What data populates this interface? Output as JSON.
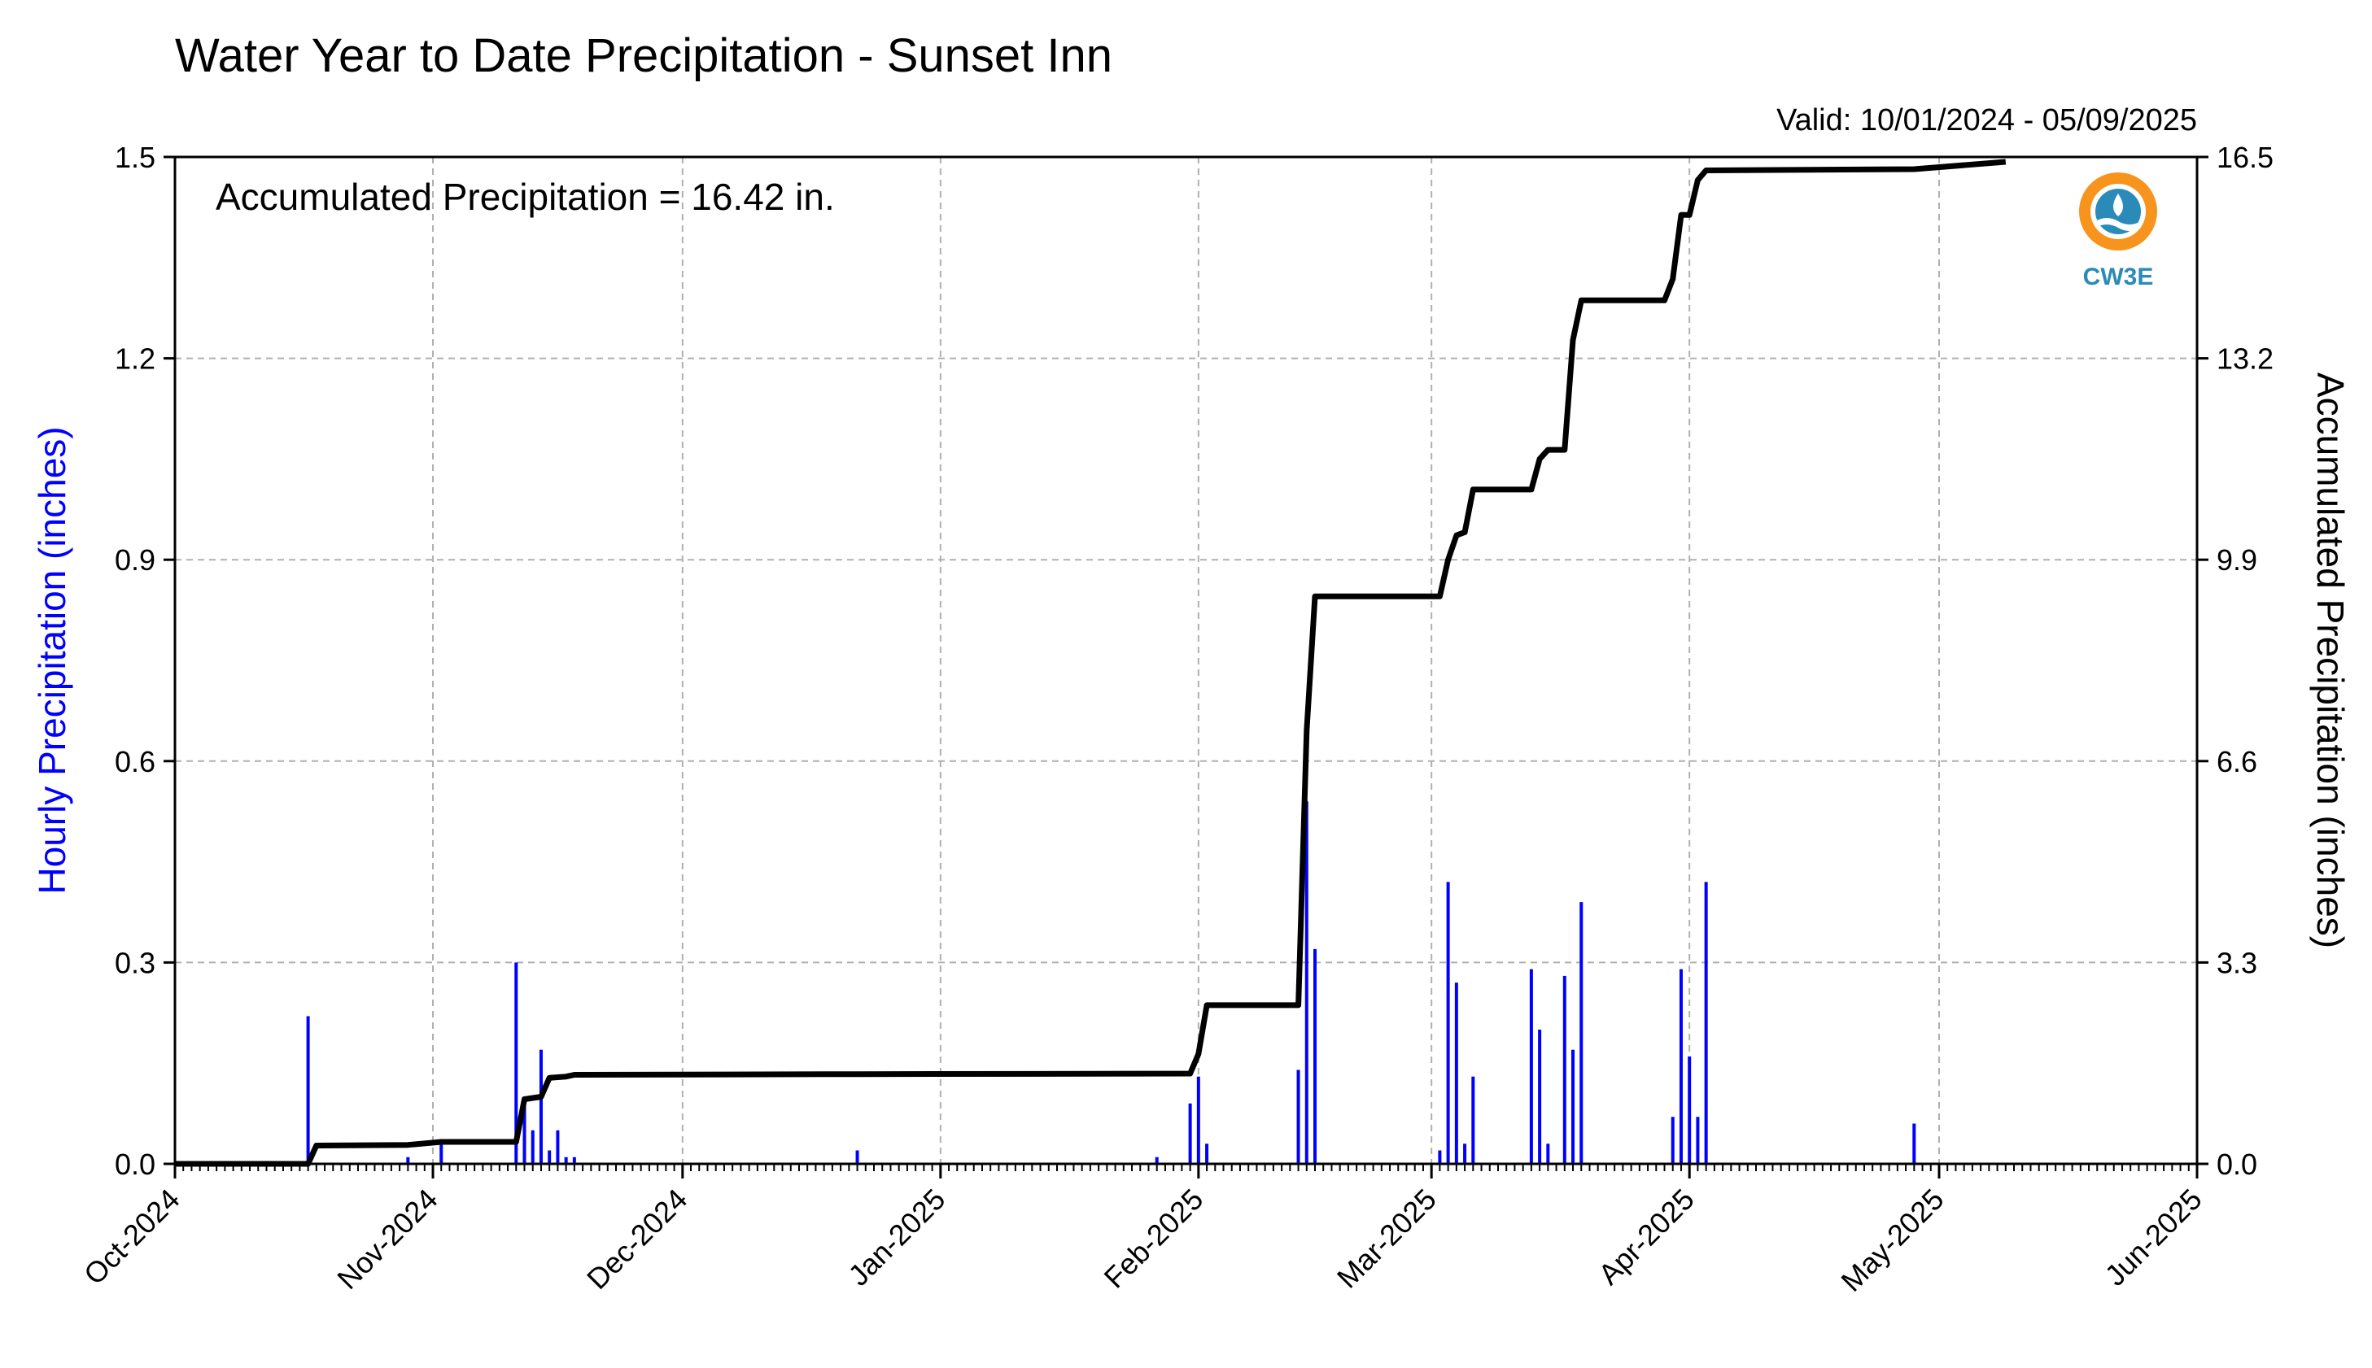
{
  "chart_data": {
    "type": "bar+line",
    "title": "Water Year to Date Precipitation - Sunset Inn",
    "subtitle": "Valid: 10/01/2024 - 05/09/2025",
    "annotation": "Accumulated Precipitation = 16.42 in.",
    "ylabel_left": "Hourly Precipitation (inches)",
    "ylabel_right": "Accumulated Precipitation (inches)",
    "ylim_left": [
      0,
      1.5
    ],
    "ylim_right": [
      0,
      16.5
    ],
    "yticks_left": [
      "0.0",
      "0.3",
      "0.6",
      "0.9",
      "1.2",
      "1.5"
    ],
    "yticks_right": [
      "0.0",
      "3.3",
      "6.6",
      "9.9",
      "13.2",
      "16.5"
    ],
    "x_start": "2024-10-01",
    "x_end": "2025-06-01",
    "xtick_labels": [
      "Oct-2024",
      "Nov-2024",
      "Dec-2024",
      "Jan-2025",
      "Feb-2025",
      "Mar-2025",
      "Apr-2025",
      "May-2025",
      "Jun-2025"
    ],
    "xtick_dates": [
      "2024-10-01",
      "2024-11-01",
      "2024-12-01",
      "2025-01-01",
      "2025-02-01",
      "2025-03-01",
      "2025-04-01",
      "2025-05-01",
      "2025-06-01"
    ],
    "grid": true,
    "colors": {
      "hourly": "#0000ff",
      "accumulated": "#000000",
      "grid": "#b0b0b0"
    },
    "series": [
      {
        "name": "Hourly Precipitation",
        "type": "bar",
        "x": [
          "2024-10-17",
          "2024-10-29",
          "2024-11-02",
          "2024-11-11",
          "2024-11-12",
          "2024-11-13",
          "2024-11-14",
          "2024-11-15",
          "2024-11-16",
          "2024-11-17",
          "2024-11-18",
          "2024-12-22",
          "2025-01-27",
          "2025-01-31",
          "2025-02-01",
          "2025-02-02",
          "2025-02-13",
          "2025-02-14",
          "2025-02-15",
          "2025-03-02",
          "2025-03-03",
          "2025-03-04",
          "2025-03-05",
          "2025-03-06",
          "2025-03-13",
          "2025-03-14",
          "2025-03-15",
          "2025-03-17",
          "2025-03-18",
          "2025-03-19",
          "2025-03-30",
          "2025-03-31",
          "2025-04-01",
          "2025-04-02",
          "2025-04-03",
          "2025-04-28"
        ],
        "values": [
          0.22,
          0.01,
          0.03,
          0.3,
          0.1,
          0.05,
          0.17,
          0.02,
          0.05,
          0.01,
          0.01,
          0.02,
          0.01,
          0.09,
          0.13,
          0.03,
          0.14,
          0.54,
          0.32,
          0.02,
          0.42,
          0.27,
          0.03,
          0.13,
          0.29,
          0.2,
          0.03,
          0.28,
          0.17,
          0.39,
          0.07,
          0.29,
          0.16,
          0.07,
          0.42,
          0.06
        ]
      },
      {
        "name": "Accumulated Precipitation",
        "type": "line",
        "x": [
          "2024-10-01",
          "2024-10-17",
          "2024-10-18",
          "2024-10-29",
          "2024-11-02",
          "2024-11-11",
          "2024-11-12",
          "2024-11-14",
          "2024-11-15",
          "2024-11-17",
          "2024-11-18",
          "2024-12-22",
          "2025-01-31",
          "2025-02-01",
          "2025-02-02",
          "2025-02-13",
          "2025-02-14",
          "2025-02-15",
          "2025-03-02",
          "2025-03-03",
          "2025-03-04",
          "2025-03-05",
          "2025-03-06",
          "2025-03-13",
          "2025-03-14",
          "2025-03-15",
          "2025-03-17",
          "2025-03-18",
          "2025-03-19",
          "2025-03-29",
          "2025-03-30",
          "2025-03-31",
          "2025-04-01",
          "2025-04-02",
          "2025-04-03",
          "2025-04-28",
          "2025-05-09"
        ],
        "values": [
          0.0,
          0.0,
          0.3,
          0.31,
          0.36,
          0.36,
          1.06,
          1.1,
          1.41,
          1.43,
          1.46,
          1.47,
          1.48,
          1.8,
          2.6,
          2.6,
          7.1,
          9.3,
          9.3,
          9.9,
          10.3,
          10.35,
          11.05,
          11.05,
          11.55,
          11.7,
          11.7,
          13.5,
          14.15,
          14.15,
          14.5,
          15.55,
          15.55,
          16.12,
          16.28,
          16.3,
          16.42
        ]
      }
    ]
  },
  "logo": {
    "text": "CW3E",
    "icon": "cw3e-logo-icon"
  }
}
